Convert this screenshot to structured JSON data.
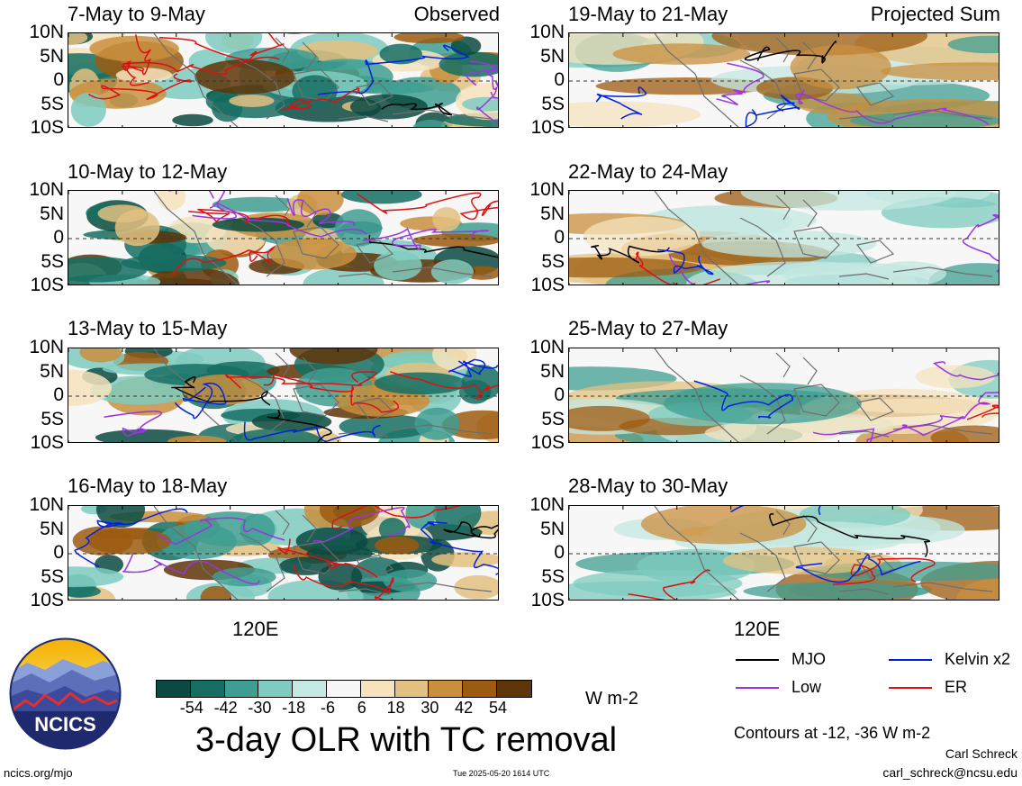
{
  "panels": [
    {
      "title": "7-May to 9-May",
      "tag": "Observed",
      "variant": 1
    },
    {
      "title": "10-May to 12-May",
      "tag": "",
      "variant": 2
    },
    {
      "title": "13-May to 15-May",
      "tag": "",
      "variant": 3
    },
    {
      "title": "16-May to 18-May",
      "tag": "",
      "variant": 4
    },
    {
      "title": "19-May to 21-May",
      "tag": "Projected Sum",
      "variant": 5
    },
    {
      "title": "22-May to 24-May",
      "tag": "",
      "variant": 6
    },
    {
      "title": "25-May to 27-May",
      "tag": "",
      "variant": 7
    },
    {
      "title": "28-May to 30-May",
      "tag": "",
      "variant": 8
    }
  ],
  "lat_labels": [
    "10N",
    "5N",
    "0",
    "5S",
    "10S"
  ],
  "lon_label": "120E",
  "legend": [
    {
      "label": "MJO",
      "color": "#000000"
    },
    {
      "label": "Kelvin x2",
      "color": "#0022dd"
    },
    {
      "label": "Low",
      "color": "#9a35e0"
    },
    {
      "label": "ER",
      "color": "#dd1111"
    }
  ],
  "colorbar": {
    "colors": [
      "#0b4a40",
      "#166e63",
      "#3f9e92",
      "#7fcbbf",
      "#c4e8e2",
      "#f7f7f7",
      "#f6e3bd",
      "#e3c180",
      "#c98f3e",
      "#9c5b10",
      "#5e3508"
    ],
    "ticks": [
      "-54",
      "-42",
      "-30",
      "-18",
      "-6",
      "6",
      "18",
      "30",
      "42",
      "54"
    ],
    "units": "W m-2"
  },
  "main_title": "3-day OLR with TC removal",
  "contours_note": "Contours at -12, -36 W m-2",
  "author": "Carl Schreck",
  "email": "carl_schreck@ncsu.edu",
  "site": "ncics.org/mjo",
  "timestamp": "Tue 2025-05-20 1614 UTC",
  "logo_text": "NCICS",
  "chart_data": {
    "type": "heatmap",
    "variable": "3-day OLR with TC removal",
    "units": "W m-2",
    "colorbar_levels": [
      -54,
      -42,
      -30,
      -18,
      -6,
      6,
      18,
      30,
      42,
      54
    ],
    "lat_range": [
      "10S",
      "10N"
    ],
    "lon_tick": "120E",
    "contour_levels": [
      -12,
      -36
    ],
    "contour_series": [
      "MJO",
      "Kelvin x2",
      "Low",
      "ER"
    ],
    "observed_periods": [
      "7-May to 9-May",
      "10-May to 12-May",
      "13-May to 15-May",
      "16-May to 18-May"
    ],
    "projected_periods": [
      "19-May to 21-May",
      "22-May to 24-May",
      "25-May to 27-May",
      "28-May to 30-May"
    ]
  }
}
